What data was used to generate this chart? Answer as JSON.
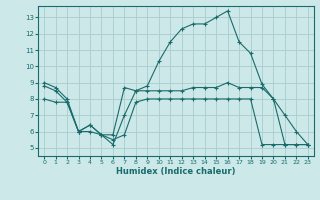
{
  "xlabel": "Humidex (Indice chaleur)",
  "bg_color": "#cce8e8",
  "grid_color": "#aacccc",
  "line_color": "#1a6b6b",
  "x_ticks": [
    0,
    1,
    2,
    3,
    4,
    5,
    6,
    7,
    8,
    9,
    10,
    11,
    12,
    13,
    14,
    15,
    16,
    17,
    18,
    19,
    20,
    21,
    22,
    23
  ],
  "y_ticks": [
    5,
    6,
    7,
    8,
    9,
    10,
    11,
    12,
    13
  ],
  "xlim": [
    -0.5,
    23.5
  ],
  "ylim": [
    4.5,
    13.7
  ],
  "line1_x": [
    0,
    1,
    2,
    3,
    4,
    5,
    6,
    7,
    8,
    9,
    10,
    11,
    12,
    13,
    14,
    15,
    16,
    17,
    18,
    19,
    20,
    21,
    22,
    23
  ],
  "line1_y": [
    9.0,
    8.7,
    8.0,
    6.0,
    6.4,
    5.8,
    5.2,
    7.0,
    8.5,
    8.8,
    10.3,
    11.5,
    12.3,
    12.6,
    12.6,
    13.0,
    13.4,
    11.5,
    10.8,
    8.9,
    8.0,
    7.0,
    6.0,
    5.2
  ],
  "line2_x": [
    0,
    1,
    2,
    3,
    4,
    5,
    6,
    7,
    8,
    9,
    10,
    11,
    12,
    13,
    14,
    15,
    16,
    17,
    18,
    19,
    20,
    21,
    22,
    23
  ],
  "line2_y": [
    8.8,
    8.5,
    7.8,
    6.0,
    6.0,
    5.8,
    5.8,
    8.7,
    8.5,
    8.5,
    8.5,
    8.5,
    8.5,
    8.7,
    8.7,
    8.7,
    9.0,
    8.7,
    8.7,
    8.7,
    8.0,
    5.2,
    5.2,
    5.2
  ],
  "line3_x": [
    0,
    1,
    2,
    3,
    4,
    5,
    6,
    7,
    8,
    9,
    10,
    11,
    12,
    13,
    14,
    15,
    16,
    17,
    18,
    19,
    20,
    21,
    22,
    23
  ],
  "line3_y": [
    8.0,
    7.8,
    7.8,
    6.0,
    6.4,
    5.8,
    5.5,
    5.8,
    7.8,
    8.0,
    8.0,
    8.0,
    8.0,
    8.0,
    8.0,
    8.0,
    8.0,
    8.0,
    8.0,
    5.2,
    5.2,
    5.2,
    5.2,
    5.2
  ]
}
